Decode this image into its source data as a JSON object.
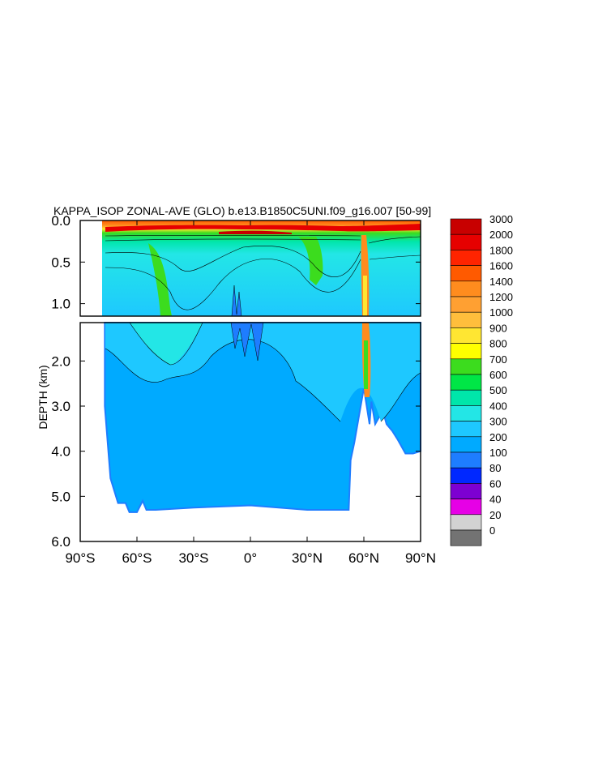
{
  "chart_data": {
    "type": "heatmap",
    "title": "KAPPA_ISOP ZONAL-AVE (GLO) b.e13.B1850C5UNI.f09_g16.007 [50-99]",
    "ylabel": "DEPTH (km)",
    "xlabel": "",
    "x_ticks": [
      "90°S",
      "60°S",
      "30°S",
      "0°",
      "30°N",
      "60°N",
      "90°N"
    ],
    "x_tick_values": [
      -90,
      -60,
      -30,
      0,
      30,
      60,
      90
    ],
    "xlim": [
      -90,
      90
    ],
    "upper_panel": {
      "ylim": [
        0.0,
        1.15
      ],
      "y_ticks": [
        "0.0",
        "0.5",
        "1.0"
      ],
      "y_tick_values": [
        0.0,
        0.5,
        1.0
      ]
    },
    "lower_panel": {
      "ylim": [
        1.15,
        6.0
      ],
      "y_ticks": [
        "2.0",
        "3.0",
        "4.0",
        "5.0",
        "6.0"
      ],
      "y_tick_values": [
        2.0,
        3.0,
        4.0,
        5.0,
        6.0
      ]
    },
    "colorbar": {
      "levels": [
        "3000",
        "2000",
        "1800",
        "1600",
        "1400",
        "1200",
        "1000",
        "900",
        "800",
        "700",
        "600",
        "500",
        "400",
        "300",
        "200",
        "100",
        "80",
        "60",
        "40",
        "20",
        "0"
      ],
      "colors": [
        "#c80000",
        "#e60000",
        "#ff2400",
        "#ff5a00",
        "#ff8c1e",
        "#ffa032",
        "#ffbe3c",
        "#ffe632",
        "#ffff00",
        "#3cdc1e",
        "#00e646",
        "#00e6aa",
        "#23e6e6",
        "#1ec8ff",
        "#00aaff",
        "#1e7dff",
        "#0028ff",
        "#7d00d2",
        "#e600e6",
        "#d2d2d2",
        "#737373"
      ]
    },
    "bathymetry_max_depth_km": [
      [
        -90,
        0
      ],
      [
        -78,
        0
      ],
      [
        -77,
        3.0
      ],
      [
        -74,
        4.6
      ],
      [
        -70,
        5.15
      ],
      [
        -66,
        5.15
      ],
      [
        -64,
        5.35
      ],
      [
        -60,
        5.35
      ],
      [
        -57,
        5.1
      ],
      [
        -55,
        5.3
      ],
      [
        -50,
        5.3
      ],
      [
        -30,
        5.25
      ],
      [
        0,
        5.2
      ],
      [
        30,
        5.3
      ],
      [
        50,
        5.3
      ],
      [
        52,
        5.3
      ],
      [
        53,
        4.2
      ],
      [
        55,
        3.8
      ],
      [
        60,
        2.6
      ],
      [
        63,
        3.4
      ],
      [
        64,
        2.9
      ],
      [
        66,
        3.4
      ],
      [
        70,
        3.1
      ],
      [
        72,
        3.4
      ],
      [
        75,
        3.55
      ],
      [
        78,
        3.75
      ],
      [
        82,
        4.05
      ],
      [
        86,
        4.05
      ],
      [
        90,
        4.0
      ]
    ]
  }
}
